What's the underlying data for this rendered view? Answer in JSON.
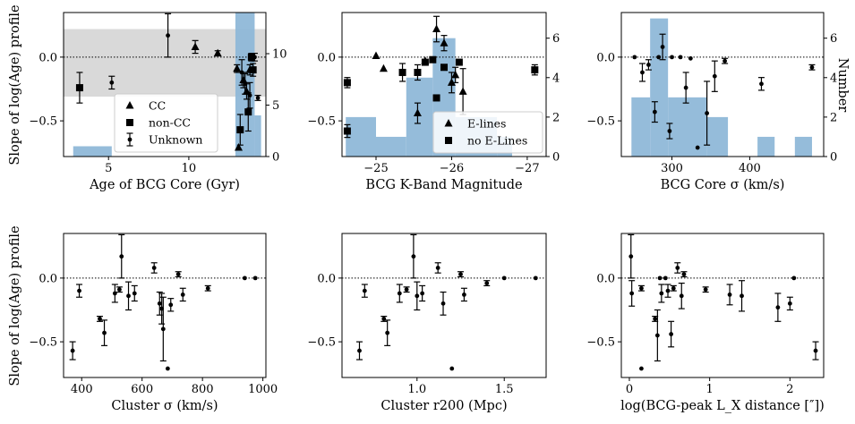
{
  "figure": {
    "ylabel_shared": "Slope of log(Age) profile",
    "right_ylabel": "Number"
  },
  "colors": {
    "hist": "#8fb8d8",
    "band": "#d9d9d9",
    "points": "#000000"
  },
  "chart_data": [
    {
      "id": "age",
      "type": "scatter",
      "xlabel": "Age of BCG Core (Gyr)",
      "ylabel": "Slope of log(Age) profile",
      "xlim": [
        2.2,
        14.8
      ],
      "ylim": [
        -0.78,
        0.35
      ],
      "xticks": [
        5,
        10
      ],
      "yticks": [
        0.0,
        -0.5
      ],
      "ytick_labels": [
        "0.0",
        "−0.5"
      ],
      "right_axis": {
        "label": "",
        "ylim": [
          0,
          14
        ],
        "ticks": [
          0,
          5,
          10
        ],
        "tick_labels": [
          "0",
          "5",
          "10"
        ]
      },
      "band": [
        -0.31,
        0.22
      ],
      "histogram": [
        {
          "x0": 2.8,
          "x1": 5.2,
          "count": 1
        },
        {
          "x0": 12.9,
          "x1": 14.1,
          "count": 14
        },
        {
          "x0": 14.1,
          "x1": 14.5,
          "count": 4
        }
      ],
      "legend": {
        "position": "lower-center",
        "entries": [
          "CC",
          "non-CC",
          "Unknown"
        ]
      },
      "series": [
        {
          "name": "CC",
          "marker": "triangle",
          "points": [
            {
              "x": 10.4,
              "y": 0.08,
              "err": 0.05
            },
            {
              "x": 11.8,
              "y": 0.03,
              "err": 0.02
            },
            {
              "x": 13.0,
              "y": -0.09,
              "err": 0.03
            },
            {
              "x": 13.4,
              "y": -0.18,
              "err": 0.06
            },
            {
              "x": 13.6,
              "y": -0.27,
              "err": 0.06
            },
            {
              "x": 13.8,
              "y": -0.1,
              "err": 0.04
            },
            {
              "x": 13.1,
              "y": -0.71,
              "err": 0.0
            }
          ]
        },
        {
          "name": "non-CC",
          "marker": "square",
          "points": [
            {
              "x": 3.2,
              "y": -0.24,
              "err": 0.12
            },
            {
              "x": 13.2,
              "y": -0.57,
              "err": 0.12
            },
            {
              "x": 13.7,
              "y": -0.43,
              "err": 0.15
            },
            {
              "x": 13.9,
              "y": -0.0,
              "err": 0.03
            },
            {
              "x": 14.0,
              "y": -0.1,
              "err": 0.05
            }
          ]
        },
        {
          "name": "Unknown",
          "marker": "dot",
          "points": [
            {
              "x": 5.2,
              "y": -0.2,
              "err": 0.05
            },
            {
              "x": 8.7,
              "y": 0.17,
              "err": 0.17
            },
            {
              "x": 13.3,
              "y": -0.12,
              "err": 0.1
            },
            {
              "x": 13.5,
              "y": -0.21,
              "err": 0.08
            },
            {
              "x": 13.8,
              "y": -0.3,
              "err": 0.1
            },
            {
              "x": 14.1,
              "y": 0.0,
              "err": 0.03
            },
            {
              "x": 14.3,
              "y": -0.32,
              "err": 0.02
            }
          ]
        }
      ]
    },
    {
      "id": "kband",
      "type": "scatter",
      "xlabel": "BCG K-Band Magnitude",
      "ylabel": "",
      "xlim": [
        -24.55,
        -27.25
      ],
      "ylim": [
        -0.78,
        0.35
      ],
      "xticks": [
        -25,
        -26,
        -27
      ],
      "xtick_labels": [
        "−25",
        "−26",
        "−27"
      ],
      "yticks": [
        0.0,
        -0.5
      ],
      "ytick_labels": [
        "0.0",
        "−0.5"
      ],
      "right_axis": {
        "label": "",
        "ylim": [
          0,
          7.3
        ],
        "ticks": [
          0,
          2,
          4,
          6
        ],
        "tick_labels": [
          "0",
          "2",
          "4",
          "6"
        ]
      },
      "histogram": [
        {
          "x0": -24.6,
          "x1": -25.0,
          "count": 2
        },
        {
          "x0": -25.0,
          "x1": -25.4,
          "count": 1
        },
        {
          "x0": -25.4,
          "x1": -25.75,
          "count": 4
        },
        {
          "x0": -25.75,
          "x1": -26.05,
          "count": 6
        },
        {
          "x0": -26.05,
          "x1": -26.6,
          "count": 2
        },
        {
          "x0": -26.6,
          "x1": -26.8,
          "count": 1
        }
      ],
      "legend": {
        "position": "lower-right",
        "entries": [
          "E-lines",
          "no E-Lines"
        ]
      },
      "series": [
        {
          "name": "E-lines",
          "marker": "triangle",
          "points": [
            {
              "x": -25.0,
              "y": 0.01,
              "err": 0.0
            },
            {
              "x": -25.1,
              "y": -0.09,
              "err": 0.0
            },
            {
              "x": -25.55,
              "y": -0.44,
              "err": 0.08
            },
            {
              "x": -25.65,
              "y": -0.03,
              "err": 0.0
            },
            {
              "x": -25.8,
              "y": 0.22,
              "err": 0.1
            },
            {
              "x": -25.9,
              "y": 0.11,
              "err": 0.06
            },
            {
              "x": -26.0,
              "y": -0.2,
              "err": 0.08
            },
            {
              "x": -26.05,
              "y": -0.14,
              "err": 0.06
            },
            {
              "x": -26.15,
              "y": -0.27,
              "err": 0.18
            }
          ]
        },
        {
          "name": "no E-Lines",
          "marker": "square",
          "points": [
            {
              "x": -24.62,
              "y": -0.2,
              "err": 0.04
            },
            {
              "x": -24.62,
              "y": -0.58,
              "err": 0.05
            },
            {
              "x": -25.35,
              "y": -0.12,
              "err": 0.07
            },
            {
              "x": -25.55,
              "y": -0.12,
              "err": 0.06
            },
            {
              "x": -25.65,
              "y": -0.04,
              "err": 0.0
            },
            {
              "x": -25.75,
              "y": -0.02,
              "err": 0.0
            },
            {
              "x": -25.8,
              "y": -0.32,
              "err": 0.0
            },
            {
              "x": -25.9,
              "y": -0.08,
              "err": 0.0
            },
            {
              "x": -26.1,
              "y": -0.04,
              "err": 0.0
            },
            {
              "x": -27.1,
              "y": -0.1,
              "err": 0.04
            }
          ]
        }
      ]
    },
    {
      "id": "sigma",
      "type": "scatter",
      "xlabel": "BCG Core σ (km/s)",
      "ylabel": "",
      "xlim": [
        235,
        495
      ],
      "ylim": [
        -0.78,
        0.35
      ],
      "xticks": [
        300,
        400
      ],
      "yticks": [
        0.0,
        -0.5
      ],
      "ytick_labels": [
        "0.0",
        "−0.5"
      ],
      "right_axis": {
        "label": "Number",
        "ylim": [
          0,
          7.3
        ],
        "ticks": [
          0,
          2,
          4,
          6
        ],
        "tick_labels": [
          "0",
          "2",
          "4",
          "6"
        ]
      },
      "histogram": [
        {
          "x0": 248,
          "x1": 272,
          "count": 3
        },
        {
          "x0": 272,
          "x1": 295,
          "count": 7
        },
        {
          "x0": 295,
          "x1": 345,
          "count": 3
        },
        {
          "x0": 345,
          "x1": 372,
          "count": 2
        },
        {
          "x0": 410,
          "x1": 432,
          "count": 1
        },
        {
          "x0": 458,
          "x1": 480,
          "count": 1
        }
      ],
      "series": [
        {
          "name": "Unknown",
          "marker": "dot",
          "points": [
            {
              "x": 252,
              "y": 0.0,
              "err": 0.0
            },
            {
              "x": 262,
              "y": -0.12,
              "err": 0.07
            },
            {
              "x": 270,
              "y": -0.06,
              "err": 0.04
            },
            {
              "x": 278,
              "y": -0.43,
              "err": 0.08
            },
            {
              "x": 283,
              "y": 0.0,
              "err": 0.0
            },
            {
              "x": 288,
              "y": 0.08,
              "err": 0.1
            },
            {
              "x": 297,
              "y": -0.58,
              "err": 0.06
            },
            {
              "x": 300,
              "y": 0.0,
              "err": 0.0
            },
            {
              "x": 311,
              "y": 0.0,
              "err": 0.0
            },
            {
              "x": 318,
              "y": -0.24,
              "err": 0.12
            },
            {
              "x": 324,
              "y": -0.01,
              "err": 0.0
            },
            {
              "x": 333,
              "y": -0.71,
              "err": 0.0
            },
            {
              "x": 345,
              "y": -0.44,
              "err": 0.25
            },
            {
              "x": 355,
              "y": -0.15,
              "err": 0.12
            },
            {
              "x": 368,
              "y": -0.03,
              "err": 0.02
            },
            {
              "x": 415,
              "y": -0.21,
              "err": 0.05
            },
            {
              "x": 480,
              "y": -0.08,
              "err": 0.02
            }
          ]
        }
      ]
    },
    {
      "id": "cluster_sigma",
      "type": "scatter",
      "xlabel": "Cluster σ (km/s)",
      "ylabel": "Slope of log(Age) profile",
      "xlim": [
        340,
        1010
      ],
      "ylim": [
        -0.78,
        0.35
      ],
      "xticks": [
        400,
        600,
        800,
        1000
      ],
      "yticks": [
        0.0,
        -0.5
      ],
      "ytick_labels": [
        "0.0",
        "−0.5"
      ],
      "series": [
        {
          "name": "Unknown",
          "marker": "dot",
          "points": [
            {
              "x": 370,
              "y": -0.57,
              "err": 0.07
            },
            {
              "x": 392,
              "y": -0.1,
              "err": 0.05
            },
            {
              "x": 460,
              "y": -0.32,
              "err": 0.02
            },
            {
              "x": 475,
              "y": -0.43,
              "err": 0.1
            },
            {
              "x": 510,
              "y": -0.12,
              "err": 0.07
            },
            {
              "x": 525,
              "y": -0.09,
              "err": 0.02
            },
            {
              "x": 532,
              "y": 0.17,
              "err": 0.17
            },
            {
              "x": 555,
              "y": -0.14,
              "err": 0.11
            },
            {
              "x": 575,
              "y": -0.12,
              "err": 0.06
            },
            {
              "x": 640,
              "y": 0.08,
              "err": 0.04
            },
            {
              "x": 658,
              "y": -0.2,
              "err": 0.09
            },
            {
              "x": 665,
              "y": -0.24,
              "err": 0.12
            },
            {
              "x": 670,
              "y": -0.4,
              "err": 0.25
            },
            {
              "x": 685,
              "y": -0.71,
              "err": 0.0
            },
            {
              "x": 695,
              "y": -0.21,
              "err": 0.05
            },
            {
              "x": 720,
              "y": 0.03,
              "err": 0.02
            },
            {
              "x": 735,
              "y": -0.13,
              "err": 0.05
            },
            {
              "x": 818,
              "y": -0.08,
              "err": 0.02
            },
            {
              "x": 940,
              "y": 0.0,
              "err": 0.0
            },
            {
              "x": 975,
              "y": 0.0,
              "err": 0.0
            }
          ]
        }
      ]
    },
    {
      "id": "r200",
      "type": "scatter",
      "xlabel": "Cluster r200 (Mpc)",
      "ylabel": "",
      "xlim": [
        0.57,
        1.74
      ],
      "ylim": [
        -0.78,
        0.35
      ],
      "xticks": [
        1.0,
        1.5
      ],
      "xtick_labels": [
        "1.0",
        "1.5"
      ],
      "yticks": [
        0.0,
        -0.5
      ],
      "ytick_labels": [
        "0.0",
        "−0.5"
      ],
      "series": [
        {
          "name": "Unknown",
          "marker": "dot",
          "points": [
            {
              "x": 0.67,
              "y": -0.57,
              "err": 0.07
            },
            {
              "x": 0.7,
              "y": -0.1,
              "err": 0.05
            },
            {
              "x": 0.81,
              "y": -0.32,
              "err": 0.02
            },
            {
              "x": 0.83,
              "y": -0.43,
              "err": 0.1
            },
            {
              "x": 0.9,
              "y": -0.12,
              "err": 0.07
            },
            {
              "x": 0.94,
              "y": -0.09,
              "err": 0.02
            },
            {
              "x": 0.98,
              "y": 0.17,
              "err": 0.17
            },
            {
              "x": 1.0,
              "y": -0.14,
              "err": 0.11
            },
            {
              "x": 1.03,
              "y": -0.12,
              "err": 0.06
            },
            {
              "x": 1.12,
              "y": 0.08,
              "err": 0.04
            },
            {
              "x": 1.15,
              "y": -0.2,
              "err": 0.09
            },
            {
              "x": 1.2,
              "y": -0.71,
              "err": 0.0
            },
            {
              "x": 1.25,
              "y": 0.03,
              "err": 0.02
            },
            {
              "x": 1.27,
              "y": -0.13,
              "err": 0.05
            },
            {
              "x": 1.4,
              "y": -0.04,
              "err": 0.02
            },
            {
              "x": 1.5,
              "y": 0.0,
              "err": 0.0
            },
            {
              "x": 1.68,
              "y": 0.0,
              "err": 0.0
            }
          ]
        }
      ]
    },
    {
      "id": "lx",
      "type": "scatter",
      "xlabel": "log(BCG-peak L_X distance [″])",
      "ylabel": "",
      "xlim": [
        -0.1,
        2.42
      ],
      "ylim": [
        -0.78,
        0.35
      ],
      "xticks": [
        0,
        1,
        2
      ],
      "yticks": [
        0.0,
        -0.5
      ],
      "ytick_labels": [
        "0.0",
        "−0.5"
      ],
      "series": [
        {
          "name": "Unknown",
          "marker": "dot",
          "points": [
            {
              "x": 0.02,
              "y": 0.17,
              "err": 0.17
            },
            {
              "x": 0.03,
              "y": -0.12,
              "err": 0.1
            },
            {
              "x": 0.15,
              "y": -0.08,
              "err": 0.02
            },
            {
              "x": 0.15,
              "y": -0.71,
              "err": 0.0
            },
            {
              "x": 0.32,
              "y": -0.32,
              "err": 0.02
            },
            {
              "x": 0.35,
              "y": -0.45,
              "err": 0.2
            },
            {
              "x": 0.38,
              "y": 0.0,
              "err": 0.0
            },
            {
              "x": 0.4,
              "y": -0.12,
              "err": 0.07
            },
            {
              "x": 0.45,
              "y": 0.0,
              "err": 0.0
            },
            {
              "x": 0.48,
              "y": -0.1,
              "err": 0.05
            },
            {
              "x": 0.52,
              "y": -0.44,
              "err": 0.1
            },
            {
              "x": 0.55,
              "y": -0.08,
              "err": 0.02
            },
            {
              "x": 0.6,
              "y": 0.08,
              "err": 0.04
            },
            {
              "x": 0.65,
              "y": -0.14,
              "err": 0.1
            },
            {
              "x": 0.68,
              "y": 0.03,
              "err": 0.02
            },
            {
              "x": 0.95,
              "y": -0.09,
              "err": 0.02
            },
            {
              "x": 1.25,
              "y": -0.13,
              "err": 0.08
            },
            {
              "x": 1.4,
              "y": -0.14,
              "err": 0.12
            },
            {
              "x": 1.85,
              "y": -0.23,
              "err": 0.11
            },
            {
              "x": 2.0,
              "y": -0.2,
              "err": 0.05
            },
            {
              "x": 2.05,
              "y": 0.0,
              "err": 0.0
            },
            {
              "x": 2.32,
              "y": -0.57,
              "err": 0.07
            }
          ]
        }
      ]
    }
  ]
}
